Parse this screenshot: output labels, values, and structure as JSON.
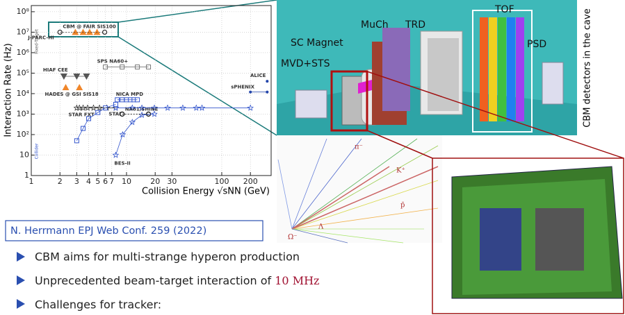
{
  "chart_data": {
    "type": "scatter",
    "y_label": "Interaction Rate (Hz)",
    "x_label": "Collision Energy √sNN (GeV)",
    "log_x": true,
    "log_y": true,
    "grid": true,
    "xlim": [
      1,
      330
    ],
    "ylim": [
      1,
      200000000
    ],
    "xticks": [
      1,
      2,
      3,
      4,
      5,
      6,
      7,
      10,
      20,
      30,
      100,
      200
    ],
    "yticks": [
      1,
      10,
      {
        "value": 100,
        "label": "10²"
      },
      {
        "value": 1000,
        "label": "10³"
      },
      {
        "value": 10000,
        "label": "10⁴"
      },
      {
        "value": 100000,
        "label": "10⁵"
      },
      {
        "value": 1000000,
        "label": "10⁶"
      },
      {
        "value": 10000000,
        "label": "10⁷"
      },
      {
        "value": 100000000,
        "label": "10⁸"
      }
    ],
    "annotations": [
      "Fixed-Target",
      "Collider"
    ],
    "series": [
      {
        "name": "CBM @ FAIR SIS100",
        "color": "#f0862a",
        "marker": "triangle",
        "line": true,
        "x": [
          2.9,
          3.5,
          4.1,
          4.9
        ],
        "y": [
          10000000,
          10000000,
          10000000,
          10000000
        ]
      },
      {
        "name": "J-PARC-HI",
        "color": "#333333",
        "marker": "circle-open",
        "line": true,
        "x": [
          2,
          5.9
        ],
        "y": [
          10000000,
          10000000
        ]
      },
      {
        "name": "SPS NA60+",
        "color": "#777777",
        "marker": "square-open",
        "line": true,
        "x": [
          6,
          9,
          13,
          17
        ],
        "y": [
          200000,
          200000,
          200000,
          200000
        ]
      },
      {
        "name": "HIAF CEE",
        "color": "#555555",
        "marker": "triangle-down",
        "line": true,
        "x": [
          2.2,
          3,
          3.8
        ],
        "y": [
          70000,
          70000,
          70000
        ]
      },
      {
        "name": "HADES @ GSI SIS18",
        "color": "#f0862a",
        "marker": "triangle",
        "line": false,
        "x": [
          2.3,
          3.2
        ],
        "y": [
          20000,
          20000
        ]
      },
      {
        "name": "ALICE",
        "color": "#2244aa",
        "marker": "circle",
        "line": false,
        "x": [
          300
        ],
        "y": [
          40000
        ]
      },
      {
        "name": "sPHENIX",
        "color": "#2244aa",
        "marker": "circle",
        "line": true,
        "x": [
          200,
          300
        ],
        "y": [
          12000,
          12000
        ]
      },
      {
        "name": "NICA MPD",
        "color": "#3355cc",
        "marker": "square-open",
        "line": true,
        "x": [
          8,
          9,
          10,
          11,
          12,
          13
        ],
        "y": [
          5000,
          5000,
          5000,
          5000,
          5000,
          5000
        ]
      },
      {
        "name": "STAR FXT",
        "color": "#333333",
        "marker": "star",
        "line": true,
        "x": [
          3,
          3.2,
          3.5,
          3.9,
          4.5,
          5.2,
          6.2,
          7.7
        ],
        "y": [
          2000,
          2000,
          2000,
          2000,
          2000,
          2000,
          2000,
          2000
        ]
      },
      {
        "name": "STAR",
        "color": "#3355cc",
        "marker": "star",
        "line": true,
        "x": [
          7.7,
          11.5,
          14.5,
          19.6,
          27,
          39,
          54,
          62,
          200
        ],
        "y": [
          2000,
          2000,
          2000,
          2000,
          2000,
          2000,
          2000,
          2000,
          2000
        ]
      },
      {
        "name": "NA61/SHINE",
        "color": "#111111",
        "marker": "circle-open",
        "line": true,
        "x": [
          9,
          17
        ],
        "y": [
          1000,
          1000
        ]
      },
      {
        "name": "BES-II",
        "color": "#3355cc",
        "marker": "star",
        "line": true,
        "x": [
          7.7,
          9.1,
          11.5,
          14.5,
          19.6
        ],
        "y": [
          10,
          100,
          400,
          900,
          1000
        ]
      },
      {
        "name": "Collider",
        "color": "#3355cc",
        "marker": "square-open",
        "line": true,
        "x": [
          3,
          3.5,
          4,
          5,
          6,
          7.7
        ],
        "y": [
          50,
          200,
          600,
          1200,
          2000,
          3000
        ]
      }
    ]
  },
  "slide": {
    "citation": "N. Herrmann EPJ Web Conf. 259 (2022)",
    "bullets": [
      "CBM aims for multi-strange hyperon production",
      "Unprecedented beam-target interaction of",
      "Challenges for tracker:"
    ],
    "bullet_highlight": "10 MHz",
    "detector_labels": [
      "SC Magnet",
      "MuCh",
      "TRD",
      "TOF",
      "PSD",
      "MVD+STS"
    ],
    "detector_caption": "CBM detectors in the cave",
    "event_labels": [
      "π⁻",
      "K⁺",
      "p̄",
      "Ω⁻",
      "Λ"
    ]
  }
}
